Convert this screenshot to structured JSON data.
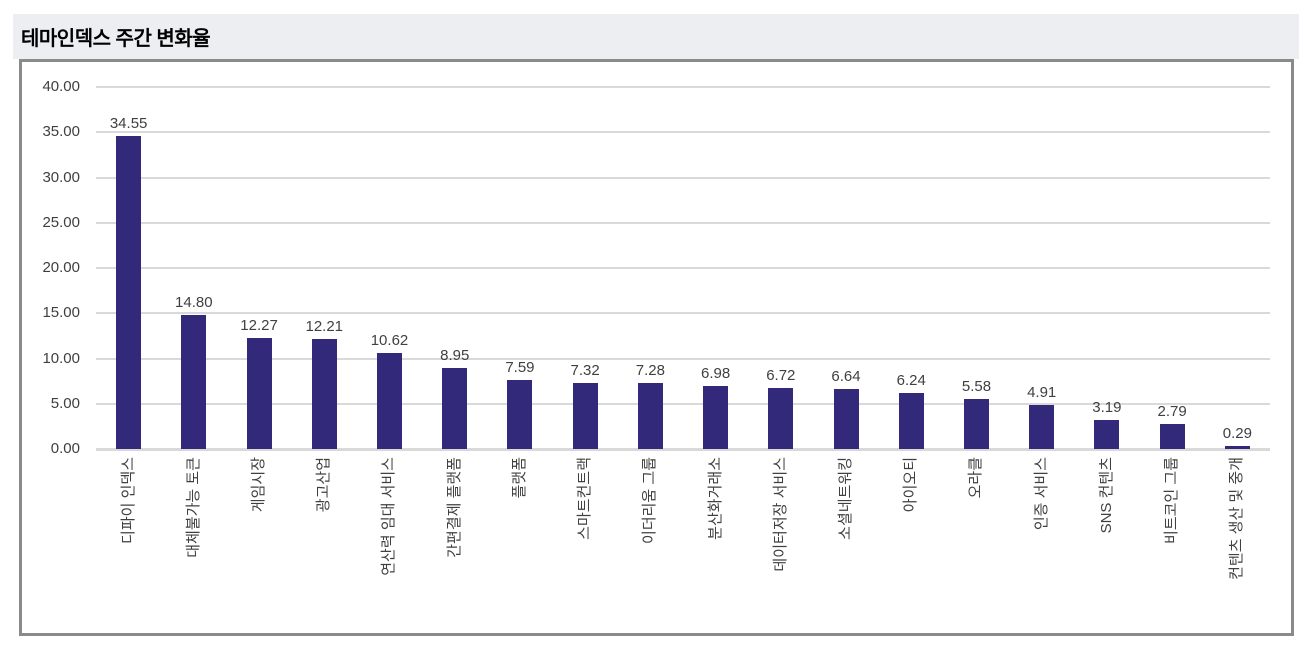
{
  "page": {
    "title": "테마인덱스 주간 변화율"
  },
  "chart_data": {
    "type": "bar",
    "title": "테마인덱스 주간 변화율",
    "categories": [
      "디파이 인덱스",
      "대체불가능 토큰",
      "게임시장",
      "광고산업",
      "연산력 임대 서비스",
      "간편결제 플랫폼",
      "플랫폼",
      "스마트컨트랙",
      "이더리움 그룹",
      "분산화거래소",
      "데이터저장 서비스",
      "소셜네트워킹",
      "아이오티",
      "오라클",
      "인증 서비스",
      "SNS 컨텐츠",
      "비트코인 그룹",
      "컨텐츠 생산 및 중개"
    ],
    "values": [
      34.55,
      14.8,
      12.27,
      12.21,
      10.62,
      8.95,
      7.59,
      7.32,
      7.28,
      6.98,
      6.72,
      6.64,
      6.24,
      5.58,
      4.91,
      3.19,
      2.79,
      0.29
    ],
    "value_labels": [
      "34.55",
      "14.80",
      "12.27",
      "12.21",
      "10.62",
      "8.95",
      "7.59",
      "7.32",
      "7.28",
      "6.98",
      "6.72",
      "6.64",
      "6.24",
      "5.58",
      "4.91",
      "3.19",
      "2.79",
      "0.29"
    ],
    "xlabel": "",
    "ylabel": "",
    "ylim": [
      0,
      40
    ],
    "yticks": [
      0,
      5,
      10,
      15,
      20,
      25,
      30,
      35,
      40
    ],
    "ytick_labels": [
      "0.00",
      "5.00",
      "10.00",
      "15.00",
      "20.00",
      "25.00",
      "30.00",
      "35.00",
      "40.00"
    ],
    "grid": true,
    "legend_position": "none",
    "x_label_rotation": -90,
    "colors": {
      "bar": "#33297B",
      "gridline": "#D9D9D9",
      "axis_text": "#3F3F3F",
      "value_text": "#404040",
      "title_background": "#EDEEF2",
      "frame_border": "#8A8A8A",
      "title_text": "#000000"
    }
  }
}
